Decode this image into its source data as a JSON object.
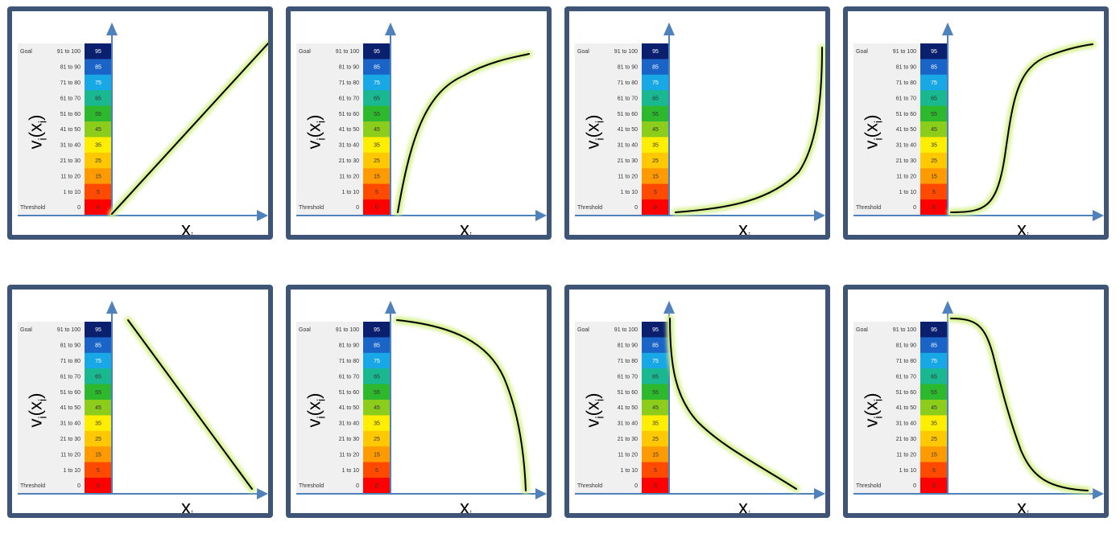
{
  "scale": {
    "rows": [
      {
        "label": "Goal",
        "range": "91 to 100",
        "value": "95"
      },
      {
        "label": "",
        "range": "81 to 90",
        "value": "85"
      },
      {
        "label": "",
        "range": "71 to 80",
        "value": "75"
      },
      {
        "label": "",
        "range": "61 to 70",
        "value": "65"
      },
      {
        "label": "",
        "range": "51 to 60",
        "value": "55"
      },
      {
        "label": "",
        "range": "41 to 50",
        "value": "45"
      },
      {
        "label": "",
        "range": "31 to 40",
        "value": "35"
      },
      {
        "label": "",
        "range": "21 to 30",
        "value": "25"
      },
      {
        "label": "",
        "range": "11 to 20",
        "value": "15"
      },
      {
        "label": "",
        "range": "1 to 10",
        "value": "5"
      },
      {
        "label": "Threshold",
        "range": "0",
        "value": "0"
      }
    ],
    "colors": [
      "#0a1f6e",
      "#1a64c8",
      "#19a8e6",
      "#19b890",
      "#2eb82e",
      "#8ccc1a",
      "#ffee00",
      "#ffc800",
      "#ff9a00",
      "#ff4a00",
      "#ff0000"
    ]
  },
  "axis_labels": {
    "y_main": "v",
    "y_sub": "i",
    "y_arg_open": "(x",
    "y_arg_sub": "i",
    "y_arg_close": ")",
    "x_main": "x",
    "x_sub": "i"
  },
  "colors": {
    "border": "#3e5578",
    "axis": "#4f81bd",
    "curve": "#000000",
    "glow": "#d4f08a"
  },
  "panels": [
    {
      "id": "linear-increasing",
      "curve": "linear-increasing"
    },
    {
      "id": "concave-increasing",
      "curve": "concave-increasing"
    },
    {
      "id": "convex-increasing",
      "curve": "convex-increasing"
    },
    {
      "id": "s-curve-increasing",
      "curve": "s-curve-increasing"
    },
    {
      "id": "linear-decreasing",
      "curve": "linear-decreasing"
    },
    {
      "id": "concave-decreasing",
      "curve": "concave-decreasing"
    },
    {
      "id": "convex-decreasing",
      "curve": "convex-decreasing"
    },
    {
      "id": "s-curve-decreasing",
      "curve": "s-curve-decreasing"
    }
  ]
}
